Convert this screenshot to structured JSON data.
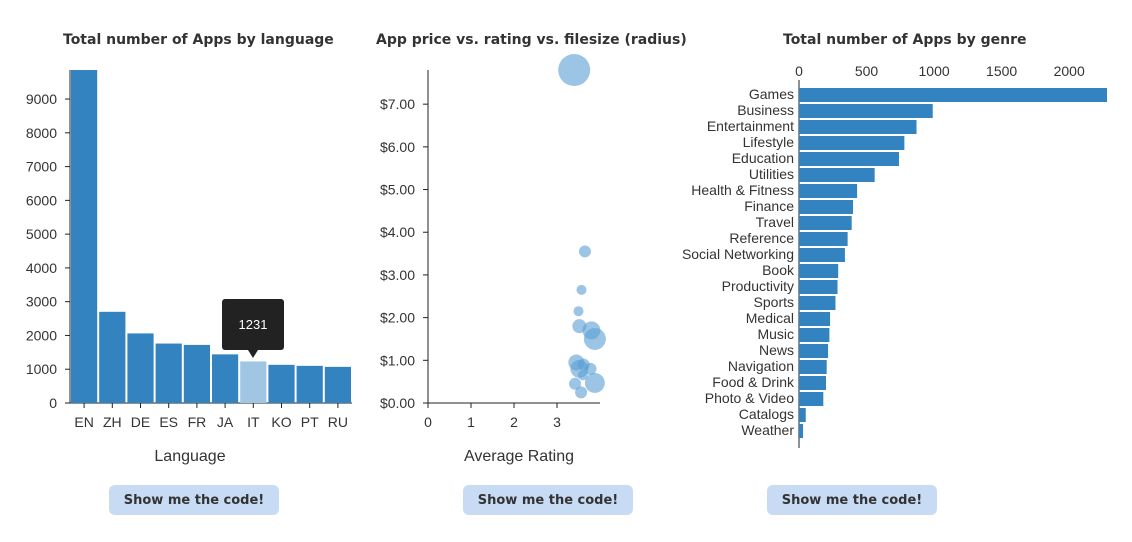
{
  "colors": {
    "bar": "#3283c0",
    "bar_highlight": "#a1c6e4",
    "bubble": "#5a9fd4",
    "axis": "#222222",
    "text": "#333333"
  },
  "tooltip": {
    "value": "1231"
  },
  "buttons": {
    "code_label": "Show me the code!"
  },
  "chart_data": [
    {
      "type": "bar",
      "title": "Total number of Apps by language",
      "xlabel": "Language",
      "ylabel": "",
      "categories": [
        "EN",
        "ZH",
        "DE",
        "ES",
        "FR",
        "JA",
        "IT",
        "KO",
        "PT",
        "RU"
      ],
      "values": [
        9860,
        2700,
        2060,
        1760,
        1720,
        1440,
        1231,
        1130,
        1100,
        1070
      ],
      "ylim": [
        0,
        9860
      ],
      "yticks": [
        0,
        1000,
        2000,
        3000,
        4000,
        5000,
        6000,
        7000,
        8000,
        9000
      ],
      "highlighted": "IT",
      "grid": false
    },
    {
      "type": "scatter",
      "title": "App price vs. rating vs. filesize (radius)",
      "xlabel": "Average Rating",
      "ylabel": "",
      "xlim": [
        0,
        4
      ],
      "ylim": [
        0,
        7.8
      ],
      "xticks": [
        0,
        1,
        2,
        3
      ],
      "yticks": [
        0,
        1,
        2,
        3,
        4,
        5,
        6,
        7
      ],
      "ytick_labels": [
        "$0.00",
        "$1.00",
        "$2.00",
        "$3.00",
        "$4.00",
        "$5.00",
        "$6.00",
        "$7.00"
      ],
      "points": [
        {
          "x": 3.4,
          "y": 7.8,
          "size": 16
        },
        {
          "x": 3.65,
          "y": 3.55,
          "size": 6
        },
        {
          "x": 3.57,
          "y": 2.65,
          "size": 5
        },
        {
          "x": 3.5,
          "y": 2.15,
          "size": 5
        },
        {
          "x": 3.52,
          "y": 1.8,
          "size": 7
        },
        {
          "x": 3.8,
          "y": 1.7,
          "size": 9
        },
        {
          "x": 3.88,
          "y": 1.5,
          "size": 11
        },
        {
          "x": 3.45,
          "y": 0.95,
          "size": 8
        },
        {
          "x": 3.62,
          "y": 0.9,
          "size": 6
        },
        {
          "x": 3.52,
          "y": 0.8,
          "size": 9
        },
        {
          "x": 3.78,
          "y": 0.8,
          "size": 6
        },
        {
          "x": 3.6,
          "y": 0.65,
          "size": 5
        },
        {
          "x": 3.42,
          "y": 0.45,
          "size": 6
        },
        {
          "x": 3.88,
          "y": 0.47,
          "size": 10
        },
        {
          "x": 3.56,
          "y": 0.25,
          "size": 6
        }
      ],
      "grid": false
    },
    {
      "type": "bar",
      "orientation": "horizontal",
      "title": "Total number of Apps by genre",
      "xlabel": "",
      "ylabel": "",
      "categories": [
        "Games",
        "Business",
        "Entertainment",
        "Lifestyle",
        "Education",
        "Utilities",
        "Health & Fitness",
        "Finance",
        "Travel",
        "Reference",
        "Social Networking",
        "Book",
        "Productivity",
        "Sports",
        "Medical",
        "Music",
        "News",
        "Navigation",
        "Food & Drink",
        "Photo & Video",
        "Catalogs",
        "Weather"
      ],
      "values": [
        2280,
        990,
        870,
        780,
        740,
        560,
        430,
        400,
        390,
        360,
        340,
        290,
        285,
        270,
        230,
        225,
        215,
        205,
        200,
        180,
        50,
        30
      ],
      "xlim": [
        0,
        2280
      ],
      "xticks": [
        0,
        500,
        1000,
        1500,
        2000
      ],
      "grid": false
    }
  ]
}
